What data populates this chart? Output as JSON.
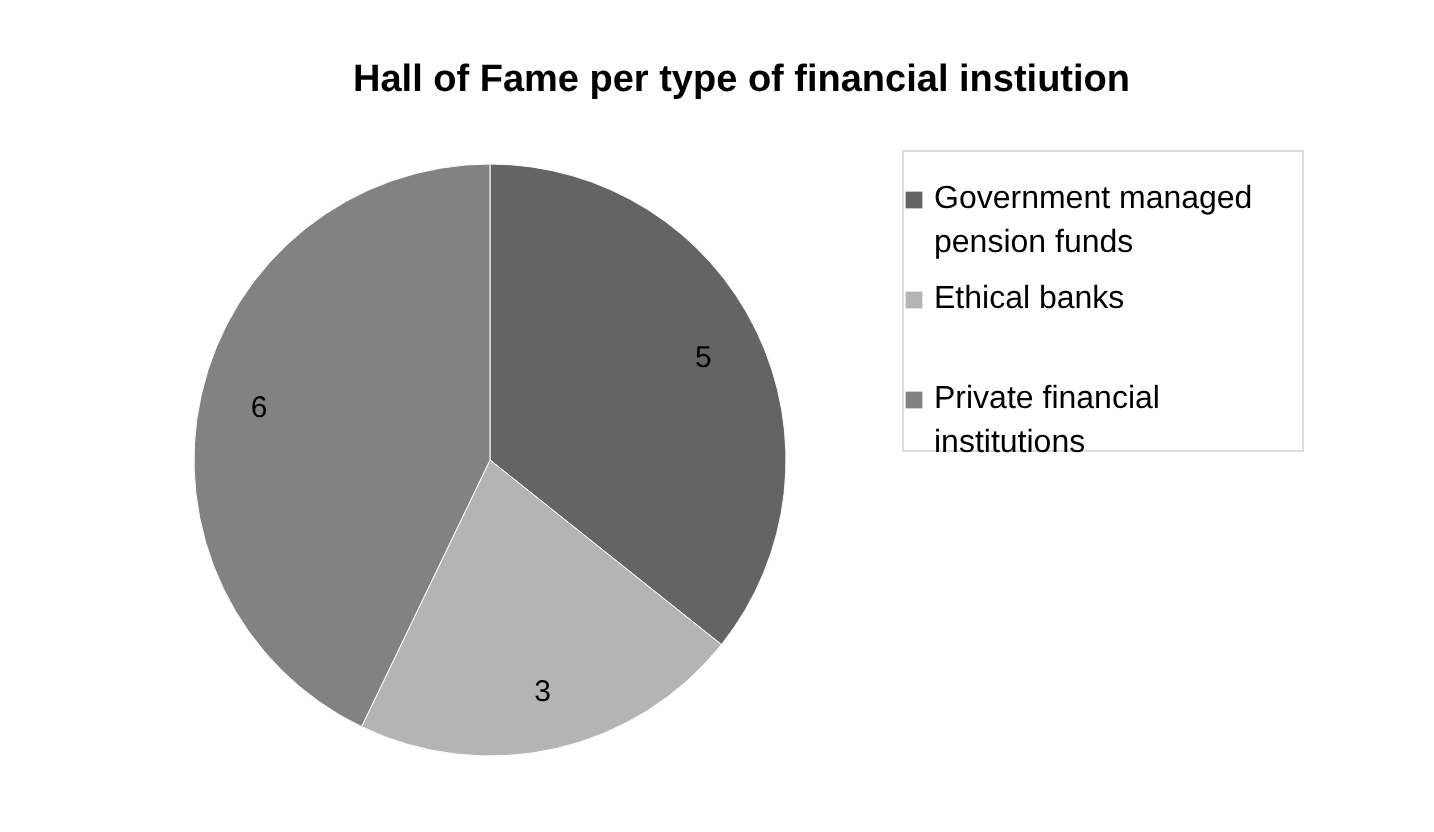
{
  "chart_data": {
    "type": "pie",
    "title": "Hall of Fame per type of financial instiution",
    "categories": [
      "Government managed pension funds",
      "Ethical banks",
      "Private financial institutions"
    ],
    "values": [
      5,
      3,
      6
    ],
    "colors": [
      "#646464",
      "#b4b4b4",
      "#828282"
    ],
    "data_labels": true,
    "legend": "right"
  }
}
